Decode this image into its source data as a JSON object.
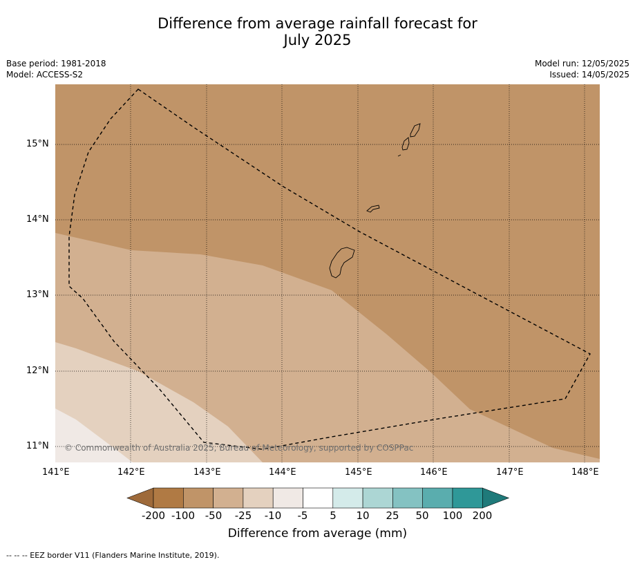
{
  "title_line1": "Difference from average rainfall forecast for",
  "title_line2": "July 2025",
  "meta": {
    "base_period": "Base period: 1981-2018",
    "model": "Model: ACCESS-S2",
    "model_run": "Model run: 12/05/2025",
    "issued": "Issued: 14/05/2025"
  },
  "axes": {
    "lon_ticks": [
      "141°E",
      "142°E",
      "143°E",
      "144°E",
      "145°E",
      "146°E",
      "147°E",
      "148°E"
    ],
    "lat_ticks": [
      "15°N",
      "14°N",
      "13°N",
      "12°N",
      "11°N"
    ]
  },
  "colorbar": {
    "labels": [
      "-200",
      "-100",
      "-50",
      "-25",
      "-10",
      "-5",
      "5",
      "10",
      "25",
      "50",
      "100",
      "200"
    ],
    "colors": [
      "#9e6a3a",
      "#b07a44",
      "#c09468",
      "#d2b090",
      "#e4d1bf",
      "#f0e9e5",
      "#ffffff",
      "#d4ebea",
      "#acd6d4",
      "#84c2c2",
      "#5aadae",
      "#2f9898",
      "#1f7a7a"
    ],
    "title": "Difference from average (mm)"
  },
  "map_fills": {
    "band_minus100": "#c09468",
    "band_minus50": "#d2b090",
    "band_minus25": "#e4d1bf",
    "band_minus10": "#f0e9e5"
  },
  "copyright": "© Commonwealth of Australia 2025, Bureau of Meteorology, supported by COSPPac",
  "footnote": "--  --  -- EEZ border V11 (Flanders Marine Institute, 2019)."
}
